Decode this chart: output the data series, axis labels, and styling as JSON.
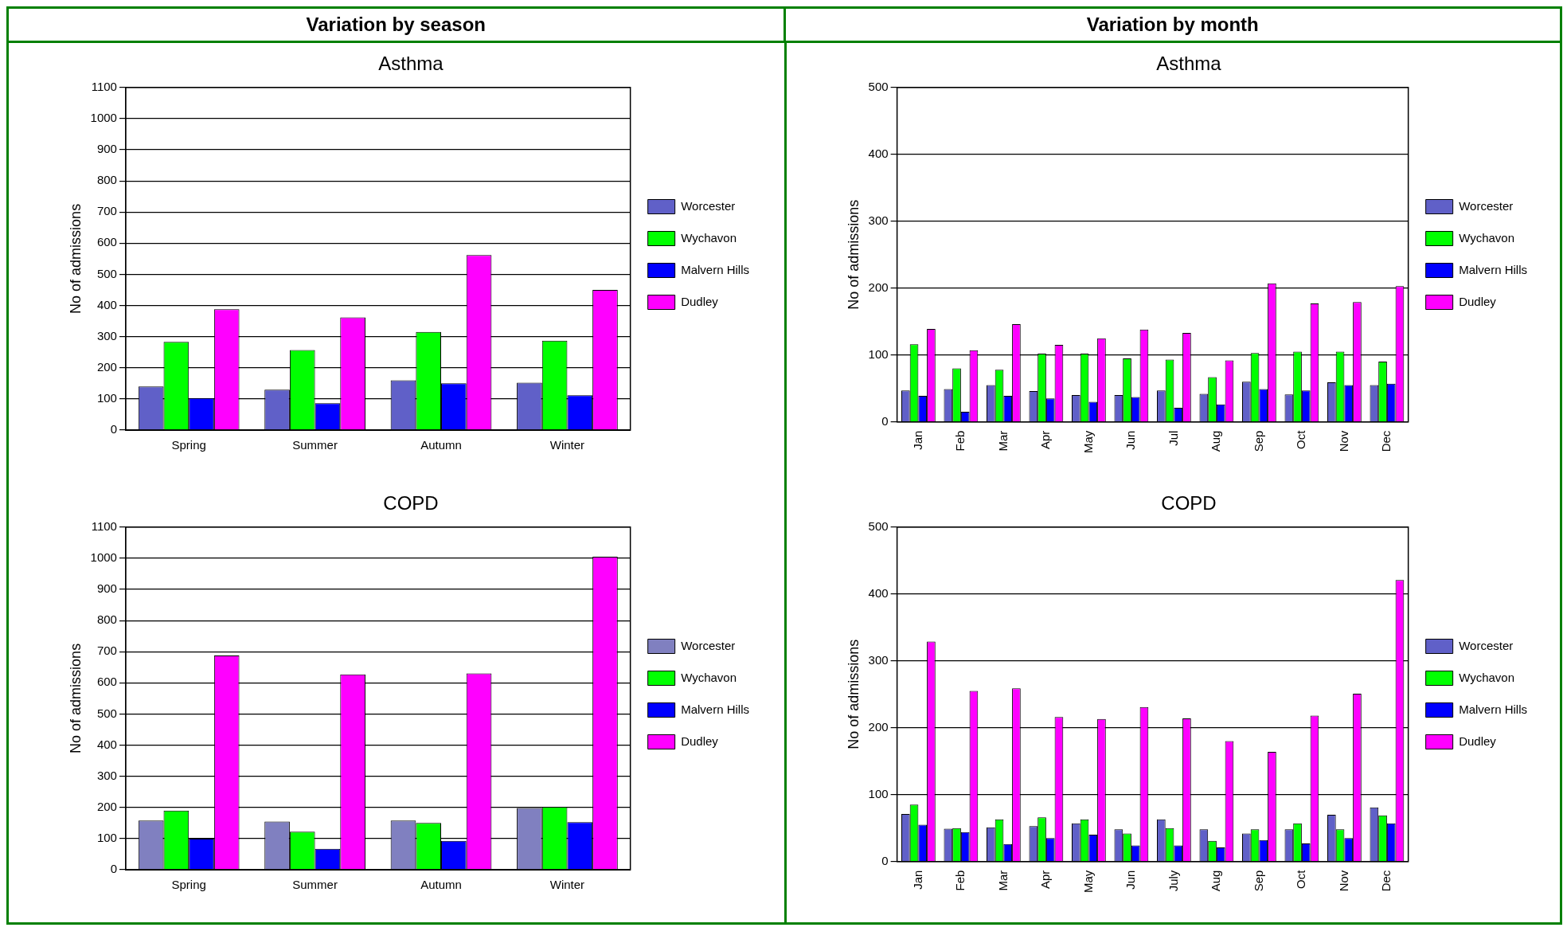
{
  "chart_data": [
    {
      "type": "bar",
      "subtitle": "Variation by season",
      "title": "Asthma",
      "ylabel": "No of admissions",
      "categories": [
        "Spring",
        "Summer",
        "Autumn",
        "Winter"
      ],
      "ylim": [
        0,
        1100
      ],
      "yticks": [
        0,
        100,
        200,
        300,
        400,
        500,
        600,
        700,
        800,
        900,
        1000,
        1100
      ],
      "grid": "y",
      "legend": "right",
      "series": [
        {
          "name": "Worcester",
          "color": "#6060c8",
          "values": [
            140,
            130,
            160,
            152
          ]
        },
        {
          "name": "Wychavon",
          "color": "#00ff00",
          "values": [
            283,
            257,
            315,
            287
          ]
        },
        {
          "name": "Malvern Hills",
          "color": "#0000ff",
          "values": [
            103,
            86,
            150,
            112
          ]
        },
        {
          "name": "Dudley",
          "color": "#ff00ff",
          "values": [
            388,
            362,
            562,
            450
          ]
        }
      ]
    },
    {
      "type": "bar",
      "subtitle": "Variation by month",
      "title": "Asthma",
      "ylabel": "No of admissions",
      "categories": [
        "Jan",
        "Feb",
        "Mar",
        "Apr",
        "May",
        "Jun",
        "Jul",
        "Aug",
        "Sep",
        "Oct",
        "Nov",
        "Dec"
      ],
      "ylim": [
        0,
        500
      ],
      "yticks": [
        0,
        100,
        200,
        300,
        400,
        500
      ],
      "grid": "y",
      "legend": "right",
      "series": [
        {
          "name": "Worcester",
          "color": "#6060c8",
          "values": [
            47,
            49,
            55,
            46,
            40,
            40,
            47,
            42,
            60,
            41,
            59,
            55
          ]
        },
        {
          "name": "Wychavon",
          "color": "#00ff00",
          "values": [
            116,
            80,
            78,
            102,
            102,
            95,
            93,
            67,
            103,
            105,
            105,
            90
          ]
        },
        {
          "name": "Malvern Hills",
          "color": "#0000ff",
          "values": [
            39,
            15,
            39,
            35,
            30,
            37,
            21,
            26,
            49,
            47,
            55,
            57
          ]
        },
        {
          "name": "Dudley",
          "color": "#ff00ff",
          "values": [
            139,
            107,
            146,
            115,
            125,
            138,
            133,
            92,
            207,
            177,
            179,
            203
          ]
        }
      ]
    },
    {
      "type": "bar",
      "title": "COPD",
      "ylabel": "No of admissions",
      "categories": [
        "Spring",
        "Summer",
        "Autumn",
        "Winter"
      ],
      "ylim": [
        0,
        1100
      ],
      "yticks": [
        0,
        100,
        200,
        300,
        400,
        500,
        600,
        700,
        800,
        900,
        1000,
        1100
      ],
      "grid": "y",
      "legend": "right",
      "series": [
        {
          "name": "Worcester",
          "color": "#8080c0",
          "values": [
            158,
            155,
            158,
            198
          ]
        },
        {
          "name": "Wychavon",
          "color": "#00ff00",
          "values": [
            190,
            122,
            150,
            202
          ]
        },
        {
          "name": "Malvern Hills",
          "color": "#0000ff",
          "values": [
            100,
            67,
            93,
            153
          ]
        },
        {
          "name": "Dudley",
          "color": "#ff00ff",
          "values": [
            688,
            627,
            630,
            1005
          ]
        }
      ]
    },
    {
      "type": "bar",
      "title": "COPD",
      "ylabel": "No of admissions",
      "categories": [
        "Jan",
        "Feb",
        "Mar",
        "Apr",
        "May",
        "Jun",
        "July",
        "Aug",
        "Sep",
        "Oct",
        "Nov",
        "Dec"
      ],
      "ylim": [
        0,
        500
      ],
      "yticks": [
        0,
        100,
        200,
        300,
        400,
        500
      ],
      "grid": "y",
      "legend": "right",
      "series": [
        {
          "name": "Worcester",
          "color": "#6060c8",
          "values": [
            71,
            49,
            51,
            53,
            57,
            48,
            63,
            48,
            42,
            48,
            70,
            81
          ]
        },
        {
          "name": "Wychavon",
          "color": "#00ff00",
          "values": [
            85,
            50,
            63,
            66,
            63,
            42,
            50,
            31,
            48,
            57,
            48,
            69
          ]
        },
        {
          "name": "Malvern Hills",
          "color": "#0000ff",
          "values": [
            55,
            44,
            26,
            35,
            40,
            24,
            24,
            21,
            32,
            27,
            35,
            57
          ]
        },
        {
          "name": "Dudley",
          "color": "#ff00ff",
          "values": [
            329,
            255,
            259,
            216,
            213,
            231,
            214,
            180,
            164,
            218,
            251,
            421
          ]
        }
      ]
    }
  ]
}
